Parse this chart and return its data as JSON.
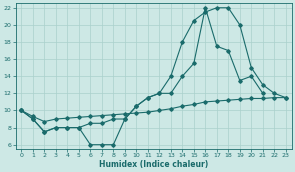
{
  "xlabel": "Humidex (Indice chaleur)",
  "xlim": [
    -0.5,
    23.5
  ],
  "ylim": [
    5.5,
    22.5
  ],
  "xticks": [
    0,
    1,
    2,
    3,
    4,
    5,
    6,
    7,
    8,
    9,
    10,
    11,
    12,
    13,
    14,
    15,
    16,
    17,
    18,
    19,
    20,
    21,
    22,
    23
  ],
  "yticks": [
    6,
    8,
    10,
    12,
    14,
    16,
    18,
    20,
    22
  ],
  "bg_color": "#cde8e5",
  "grid_color": "#aad0cc",
  "line_color": "#1a6b6b",
  "line1_x": [
    0,
    1,
    2,
    3,
    4,
    5,
    6,
    7,
    8,
    9,
    10,
    11,
    12,
    13,
    14,
    15,
    16,
    17,
    18,
    19,
    20,
    21,
    22,
    23
  ],
  "line1_y": [
    10,
    9,
    7.5,
    8,
    8,
    8,
    8.5,
    8.5,
    9,
    9,
    10.5,
    11.5,
    12,
    14,
    18,
    20.5,
    21.5,
    22,
    22,
    20,
    15,
    13,
    12,
    11.5
  ],
  "line2_x": [
    0,
    1,
    2,
    3,
    4,
    5,
    6,
    7,
    8,
    9,
    10,
    11,
    12,
    13,
    14,
    15,
    16,
    17,
    18,
    19,
    20,
    21,
    22,
    23
  ],
  "line2_y": [
    10,
    9,
    7.5,
    8,
    8,
    8,
    6,
    6,
    6,
    9,
    10.5,
    11.5,
    12,
    12,
    14,
    15.5,
    22,
    17.5,
    17,
    13.5,
    14,
    12,
    null,
    null
  ],
  "line3_x": [
    0,
    1,
    2,
    3,
    4,
    5,
    6,
    7,
    8,
    9,
    10,
    11,
    12,
    13,
    14,
    15,
    16,
    17,
    18,
    19,
    20,
    21,
    22,
    23
  ],
  "line3_y": [
    10,
    9.3,
    8.7,
    9,
    9.1,
    9.2,
    9.3,
    9.4,
    9.5,
    9.6,
    9.7,
    9.8,
    10,
    10.2,
    10.5,
    10.7,
    11,
    11.1,
    11.2,
    11.3,
    11.4,
    11.4,
    11.5,
    11.5
  ]
}
